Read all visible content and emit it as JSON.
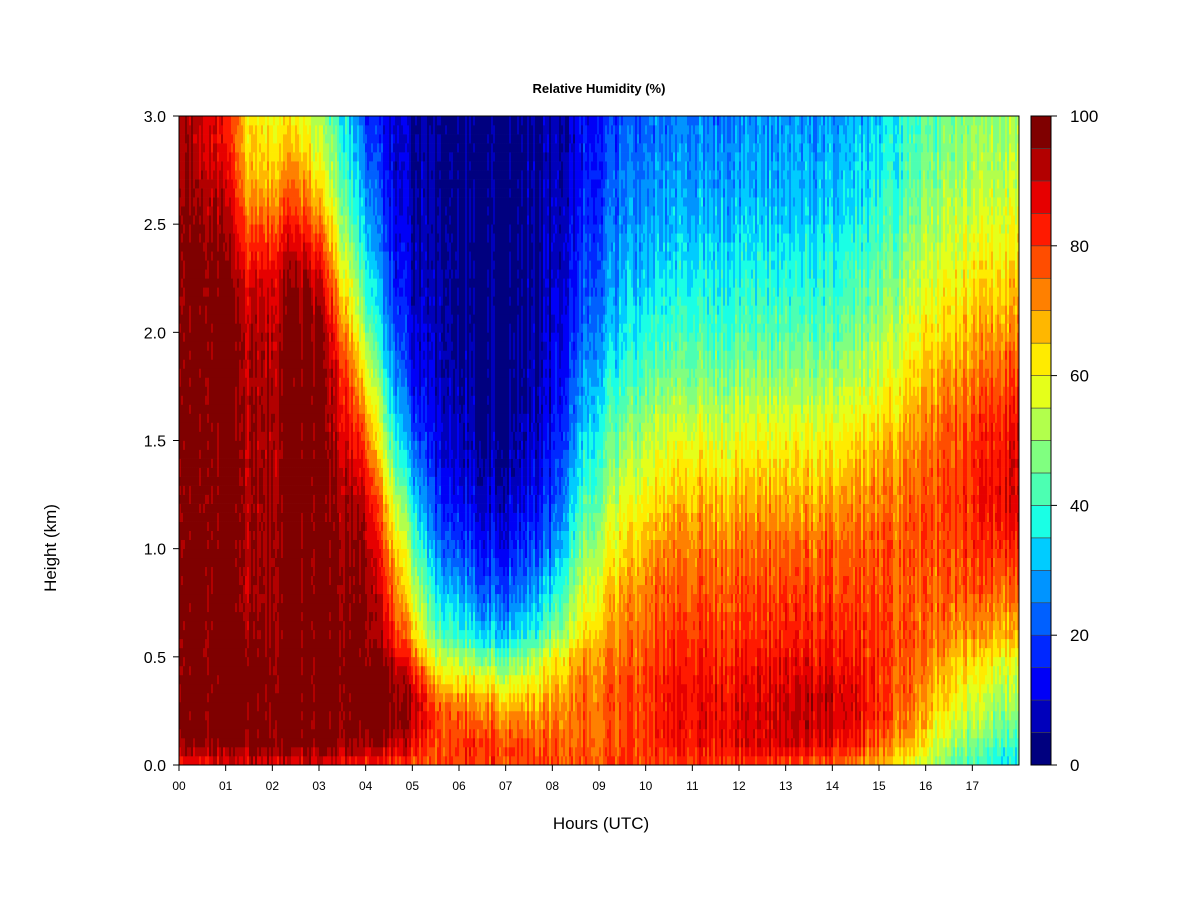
{
  "chart_data": {
    "type": "heatmap",
    "title": "Relative Humidity (%)",
    "xlabel": "Hours (UTC)",
    "ylabel": "Height (km)",
    "x_ticks": [
      "00",
      "01",
      "02",
      "03",
      "04",
      "05",
      "06",
      "07",
      "08",
      "09",
      "10",
      "11",
      "12",
      "13",
      "14",
      "15",
      "16",
      "17"
    ],
    "y_ticks": [
      "0.0",
      "0.5",
      "1.0",
      "1.5",
      "2.0",
      "2.5",
      "3.0"
    ],
    "xlim": [
      0,
      18
    ],
    "ylim": [
      0,
      3.0
    ],
    "colorbar": {
      "min": 0,
      "max": 100,
      "step": 5,
      "ticks": [
        "0",
        "20",
        "40",
        "60",
        "80",
        "100"
      ],
      "colors": [
        "#00007F",
        "#0000BB",
        "#0000F7",
        "#0028FF",
        "#0060FF",
        "#0094FF",
        "#00CCFF",
        "#1AFFE5",
        "#4CFFB2",
        "#80FF80",
        "#B2FF4C",
        "#E5FF1A",
        "#FFEB00",
        "#FFB700",
        "#FF8000",
        "#FF4D00",
        "#FF1A00",
        "#E60000",
        "#B20000",
        "#7F0000"
      ]
    },
    "grid_hours": [
      0,
      0.5,
      1,
      1.5,
      2,
      2.5,
      3,
      3.5,
      4,
      4.5,
      5,
      5.5,
      6,
      6.5,
      7,
      7.5,
      8,
      8.5,
      9,
      9.5,
      10,
      10.5,
      11,
      11.5,
      12,
      12.5,
      13,
      13.5,
      14,
      14.5,
      15,
      15.5,
      16,
      16.5,
      17,
      17.5,
      18
    ],
    "grid_heights_km": [
      0,
      0.1,
      0.2,
      0.3,
      0.4,
      0.5,
      0.6,
      0.8,
      1.0,
      1.2,
      1.4,
      1.6,
      1.8,
      2.0,
      2.2,
      2.4,
      2.6,
      2.8,
      3.0
    ],
    "grid_values_percent": [
      [
        85,
        97,
        99,
        99,
        99,
        99,
        99,
        99,
        99,
        99,
        99,
        99,
        99,
        99,
        99,
        99,
        98,
        96,
        95
      ],
      [
        85,
        97,
        99,
        99,
        99,
        99,
        99,
        99,
        99,
        99,
        99,
        99,
        99,
        99,
        99,
        98,
        95,
        92,
        90
      ],
      [
        86,
        98,
        99,
        99,
        99,
        99,
        99,
        99,
        99,
        99,
        99,
        99,
        99,
        99,
        99,
        96,
        92,
        86,
        84
      ],
      [
        87,
        98,
        99,
        99,
        99,
        99,
        96,
        92,
        93,
        93,
        93,
        93,
        93,
        93,
        88,
        80,
        70,
        65,
        62
      ],
      [
        88,
        98,
        99,
        99,
        99,
        99,
        97,
        96,
        96,
        96,
        95,
        95,
        94,
        93,
        90,
        83,
        73,
        65,
        60
      ],
      [
        88,
        98,
        99,
        99,
        99,
        99,
        99,
        99,
        99,
        99,
        99,
        99,
        99,
        99,
        97,
        90,
        80,
        70,
        60
      ],
      [
        88,
        99,
        99,
        99,
        99,
        99,
        99,
        99,
        99,
        99,
        99,
        99,
        99,
        98,
        92,
        80,
        67,
        58,
        50
      ],
      [
        85,
        97,
        99,
        99,
        99,
        99,
        99,
        98,
        97,
        95,
        92,
        88,
        84,
        76,
        66,
        56,
        48,
        42,
        38
      ],
      [
        83,
        95,
        99,
        99,
        99,
        99,
        99,
        98,
        96,
        92,
        84,
        74,
        62,
        50,
        42,
        36,
        30,
        25,
        20
      ],
      [
        80,
        93,
        98,
        99,
        97,
        92,
        86,
        80,
        72,
        62,
        50,
        40,
        32,
        25,
        20,
        16,
        13,
        11,
        10
      ],
      [
        78,
        88,
        93,
        93,
        88,
        78,
        68,
        57,
        48,
        38,
        28,
        20,
        14,
        11,
        9,
        8,
        7,
        6,
        6
      ],
      [
        78,
        78,
        80,
        75,
        65,
        55,
        45,
        36,
        26,
        18,
        13,
        10,
        8,
        7,
        6,
        5,
        5,
        4,
        4
      ],
      [
        80,
        80,
        77,
        72,
        62,
        52,
        40,
        30,
        20,
        14,
        10,
        8,
        6,
        5,
        4,
        4,
        3,
        3,
        3
      ],
      [
        80,
        82,
        76,
        70,
        60,
        47,
        35,
        23,
        15,
        10,
        6,
        4,
        3,
        3,
        3,
        2,
        2,
        2,
        1
      ],
      [
        80,
        78,
        72,
        65,
        55,
        45,
        32,
        22,
        14,
        9,
        5,
        3,
        2,
        2,
        2,
        1,
        1,
        1,
        1
      ],
      [
        80,
        78,
        72,
        67,
        58,
        49,
        38,
        27,
        18,
        13,
        9,
        7,
        5,
        5,
        4,
        4,
        4,
        4,
        3
      ],
      [
        78,
        76,
        72,
        70,
        64,
        58,
        46,
        35,
        25,
        18,
        14,
        11,
        9,
        8,
        7,
        6,
        6,
        5,
        5
      ],
      [
        78,
        76,
        74,
        74,
        72,
        68,
        60,
        52,
        44,
        38,
        32,
        27,
        23,
        20,
        17,
        15,
        13,
        12,
        11
      ],
      [
        78,
        77,
        76,
        76,
        75,
        72,
        68,
        62,
        55,
        49,
        43,
        38,
        33,
        28,
        25,
        22,
        20,
        18,
        16
      ],
      [
        78,
        78,
        77,
        77,
        76,
        74,
        72,
        68,
        62,
        56,
        50,
        44,
        38,
        33,
        30,
        27,
        24,
        22,
        20
      ],
      [
        79,
        80,
        80,
        80,
        79,
        77,
        76,
        73,
        68,
        62,
        56,
        50,
        44,
        38,
        34,
        30,
        27,
        25,
        23
      ],
      [
        80,
        85,
        86,
        86,
        85,
        83,
        81,
        78,
        74,
        68,
        62,
        55,
        48,
        42,
        38,
        34,
        30,
        28,
        26
      ],
      [
        80,
        85,
        86,
        86,
        85,
        83,
        81,
        78,
        74,
        68,
        62,
        55,
        48,
        42,
        38,
        34,
        30,
        28,
        26
      ],
      [
        80,
        86,
        86,
        86,
        84,
        82,
        80,
        77,
        73,
        67,
        61,
        54,
        47,
        41,
        37,
        33,
        29,
        27,
        25
      ],
      [
        80,
        87,
        87,
        87,
        85,
        83,
        80,
        77,
        74,
        68,
        62,
        55,
        48,
        42,
        38,
        34,
        30,
        28,
        26
      ],
      [
        80,
        88,
        88,
        88,
        86,
        84,
        82,
        79,
        75,
        69,
        63,
        56,
        49,
        43,
        39,
        35,
        31,
        29,
        27
      ],
      [
        78,
        89,
        90,
        90,
        87,
        85,
        82,
        79,
        75,
        69,
        63,
        56,
        49,
        43,
        39,
        35,
        31,
        29,
        27
      ],
      [
        77,
        88,
        91,
        91,
        88,
        85,
        82,
        79,
        75,
        69,
        63,
        56,
        49,
        43,
        39,
        35,
        31,
        29,
        27
      ],
      [
        75,
        86,
        90,
        90,
        87,
        85,
        82,
        79,
        76,
        70,
        64,
        57,
        50,
        44,
        40,
        36,
        32,
        30,
        28
      ],
      [
        72,
        82,
        86,
        87,
        85,
        83,
        81,
        78,
        76,
        71,
        66,
        59,
        52,
        46,
        42,
        38,
        34,
        32,
        30
      ],
      [
        68,
        76,
        80,
        81,
        80,
        80,
        80,
        78,
        77,
        73,
        69,
        62,
        56,
        50,
        46,
        42,
        38,
        35,
        33
      ],
      [
        60,
        68,
        73,
        75,
        76,
        77,
        77,
        76,
        76,
        74,
        71,
        65,
        60,
        54,
        50,
        46,
        42,
        39,
        37
      ],
      [
        52,
        60,
        65,
        68,
        70,
        72,
        74,
        75,
        76,
        76,
        74,
        70,
        65,
        60,
        55,
        51,
        47,
        44,
        42
      ],
      [
        45,
        52,
        58,
        62,
        65,
        68,
        72,
        76,
        78,
        79,
        78,
        75,
        70,
        65,
        60,
        56,
        52,
        48,
        46
      ],
      [
        40,
        46,
        52,
        56,
        60,
        64,
        70,
        76,
        80,
        82,
        81,
        78,
        73,
        68,
        63,
        58,
        54,
        50,
        48
      ],
      [
        36,
        42,
        48,
        52,
        56,
        60,
        68,
        75,
        82,
        86,
        85,
        82,
        76,
        70,
        65,
        60,
        55,
        51,
        49
      ],
      [
        34,
        40,
        46,
        50,
        54,
        58,
        66,
        74,
        82,
        88,
        88,
        85,
        79,
        72,
        67,
        62,
        57,
        53,
        51
      ]
    ]
  }
}
